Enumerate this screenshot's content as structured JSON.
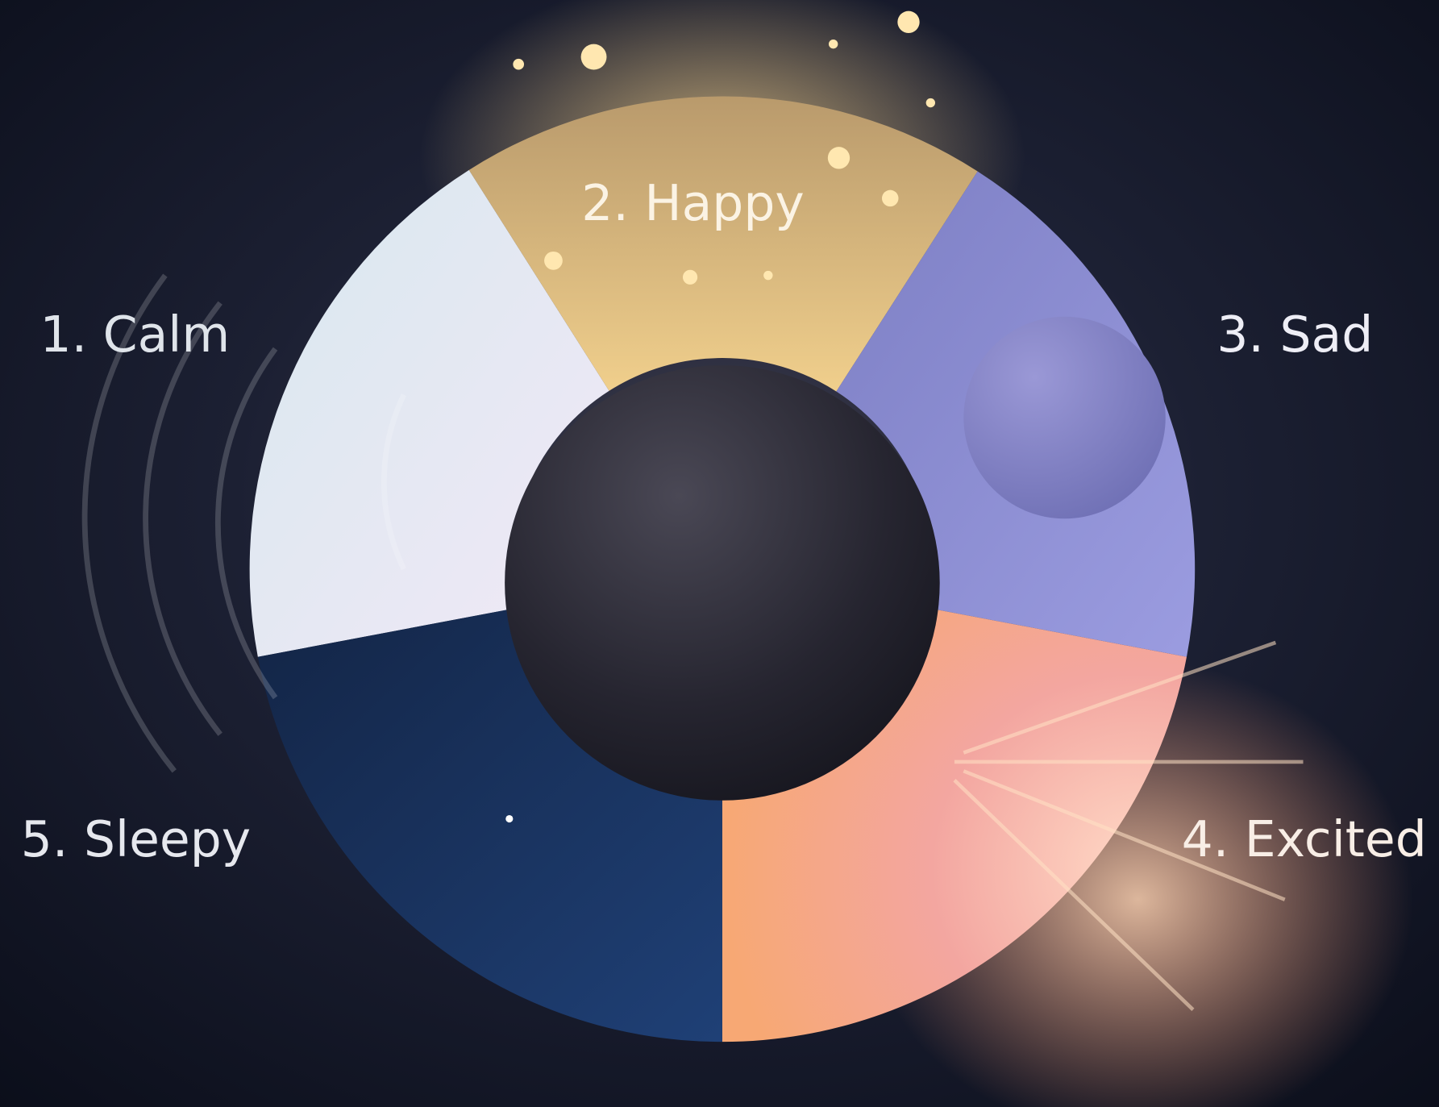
{
  "mood_wheel": {
    "options": [
      "1. Calm",
      "2. Happy",
      "3. Sad",
      "4. Excited",
      "5. Sleepy"
    ]
  }
}
